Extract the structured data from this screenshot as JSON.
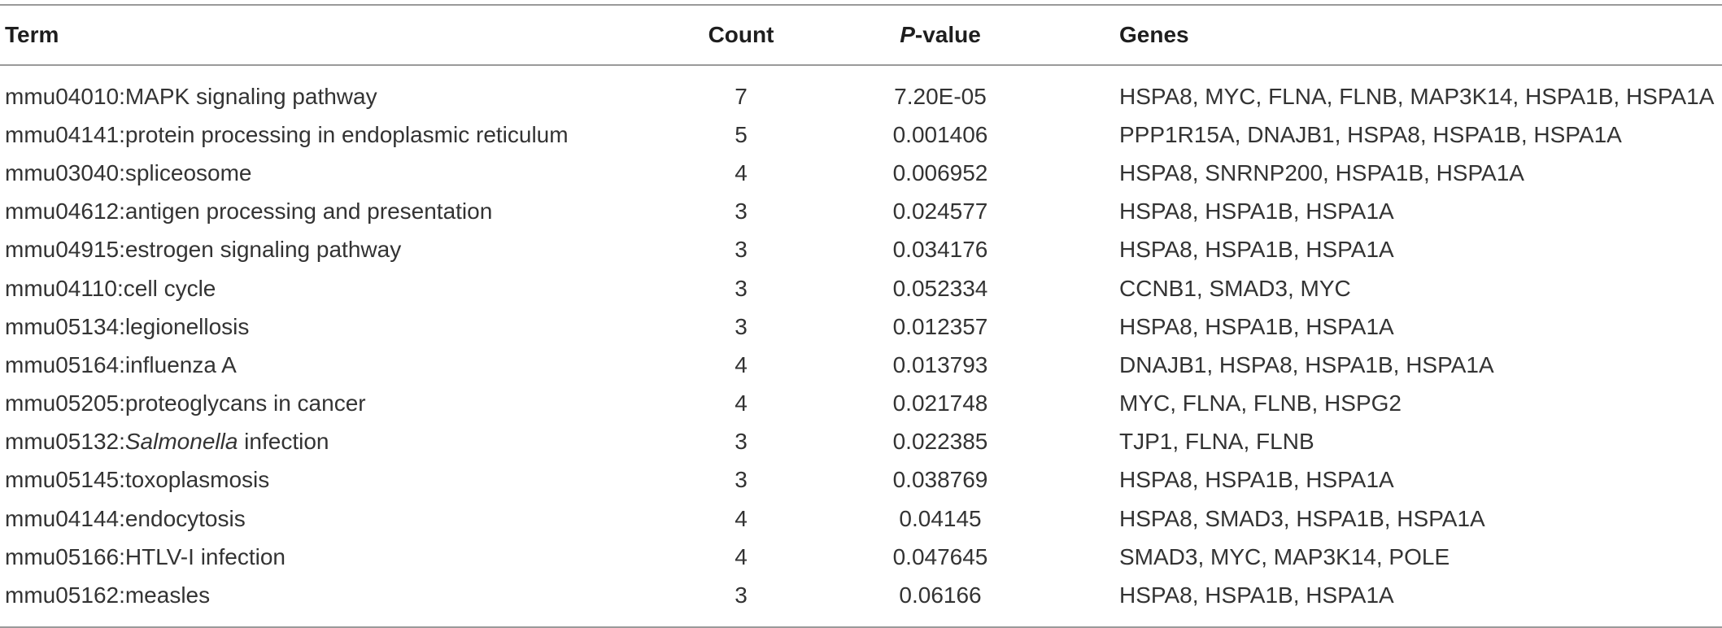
{
  "table": {
    "headers": {
      "term": "Term",
      "count": "Count",
      "pvalue_italic": "P",
      "pvalue_rest": "-value",
      "genes": "Genes"
    },
    "rows": [
      {
        "term_pre": "mmu04010:MAPK signaling pathway",
        "term_italic": "",
        "term_post": "",
        "count": "7",
        "pvalue": "7.20E-05",
        "genes": "HSPA8, MYC, FLNA, FLNB, MAP3K14, HSPA1B, HSPA1A"
      },
      {
        "term_pre": "mmu04141:protein processing in endoplasmic reticulum",
        "term_italic": "",
        "term_post": "",
        "count": "5",
        "pvalue": "0.001406",
        "genes": "PPP1R15A, DNAJB1, HSPA8, HSPA1B, HSPA1A"
      },
      {
        "term_pre": "mmu03040:spliceosome",
        "term_italic": "",
        "term_post": "",
        "count": "4",
        "pvalue": "0.006952",
        "genes": "HSPA8, SNRNP200, HSPA1B, HSPA1A"
      },
      {
        "term_pre": "mmu04612:antigen processing and presentation",
        "term_italic": "",
        "term_post": "",
        "count": "3",
        "pvalue": "0.024577",
        "genes": "HSPA8, HSPA1B, HSPA1A"
      },
      {
        "term_pre": "mmu04915:estrogen signaling pathway",
        "term_italic": "",
        "term_post": "",
        "count": "3",
        "pvalue": "0.034176",
        "genes": "HSPA8, HSPA1B, HSPA1A"
      },
      {
        "term_pre": "mmu04110:cell cycle",
        "term_italic": "",
        "term_post": "",
        "count": "3",
        "pvalue": "0.052334",
        "genes": "CCNB1, SMAD3, MYC"
      },
      {
        "term_pre": "mmu05134:legionellosis",
        "term_italic": "",
        "term_post": "",
        "count": "3",
        "pvalue": "0.012357",
        "genes": "HSPA8, HSPA1B, HSPA1A"
      },
      {
        "term_pre": "mmu05164:influenza A",
        "term_italic": "",
        "term_post": "",
        "count": "4",
        "pvalue": "0.013793",
        "genes": "DNAJB1, HSPA8, HSPA1B, HSPA1A"
      },
      {
        "term_pre": "mmu05205:proteoglycans in cancer",
        "term_italic": "",
        "term_post": "",
        "count": "4",
        "pvalue": "0.021748",
        "genes": "MYC, FLNA, FLNB, HSPG2"
      },
      {
        "term_pre": "mmu05132:",
        "term_italic": "Salmonella",
        "term_post": " infection",
        "count": "3",
        "pvalue": "0.022385",
        "genes": "TJP1, FLNA, FLNB"
      },
      {
        "term_pre": "mmu05145:toxoplasmosis",
        "term_italic": "",
        "term_post": "",
        "count": "3",
        "pvalue": "0.038769",
        "genes": "HSPA8, HSPA1B, HSPA1A"
      },
      {
        "term_pre": "mmu04144:endocytosis",
        "term_italic": "",
        "term_post": "",
        "count": "4",
        "pvalue": "0.04145",
        "genes": "HSPA8, SMAD3, HSPA1B, HSPA1A"
      },
      {
        "term_pre": "mmu05166:HTLV-I infection",
        "term_italic": "",
        "term_post": "",
        "count": "4",
        "pvalue": "0.047645",
        "genes": "SMAD3, MYC, MAP3K14, POLE"
      },
      {
        "term_pre": "mmu05162:measles",
        "term_italic": "",
        "term_post": "",
        "count": "3",
        "pvalue": "0.06166",
        "genes": "HSPA8, HSPA1B, HSPA1A"
      }
    ]
  },
  "colors": {
    "rule": "#9a9a9a",
    "text": "#333333"
  }
}
